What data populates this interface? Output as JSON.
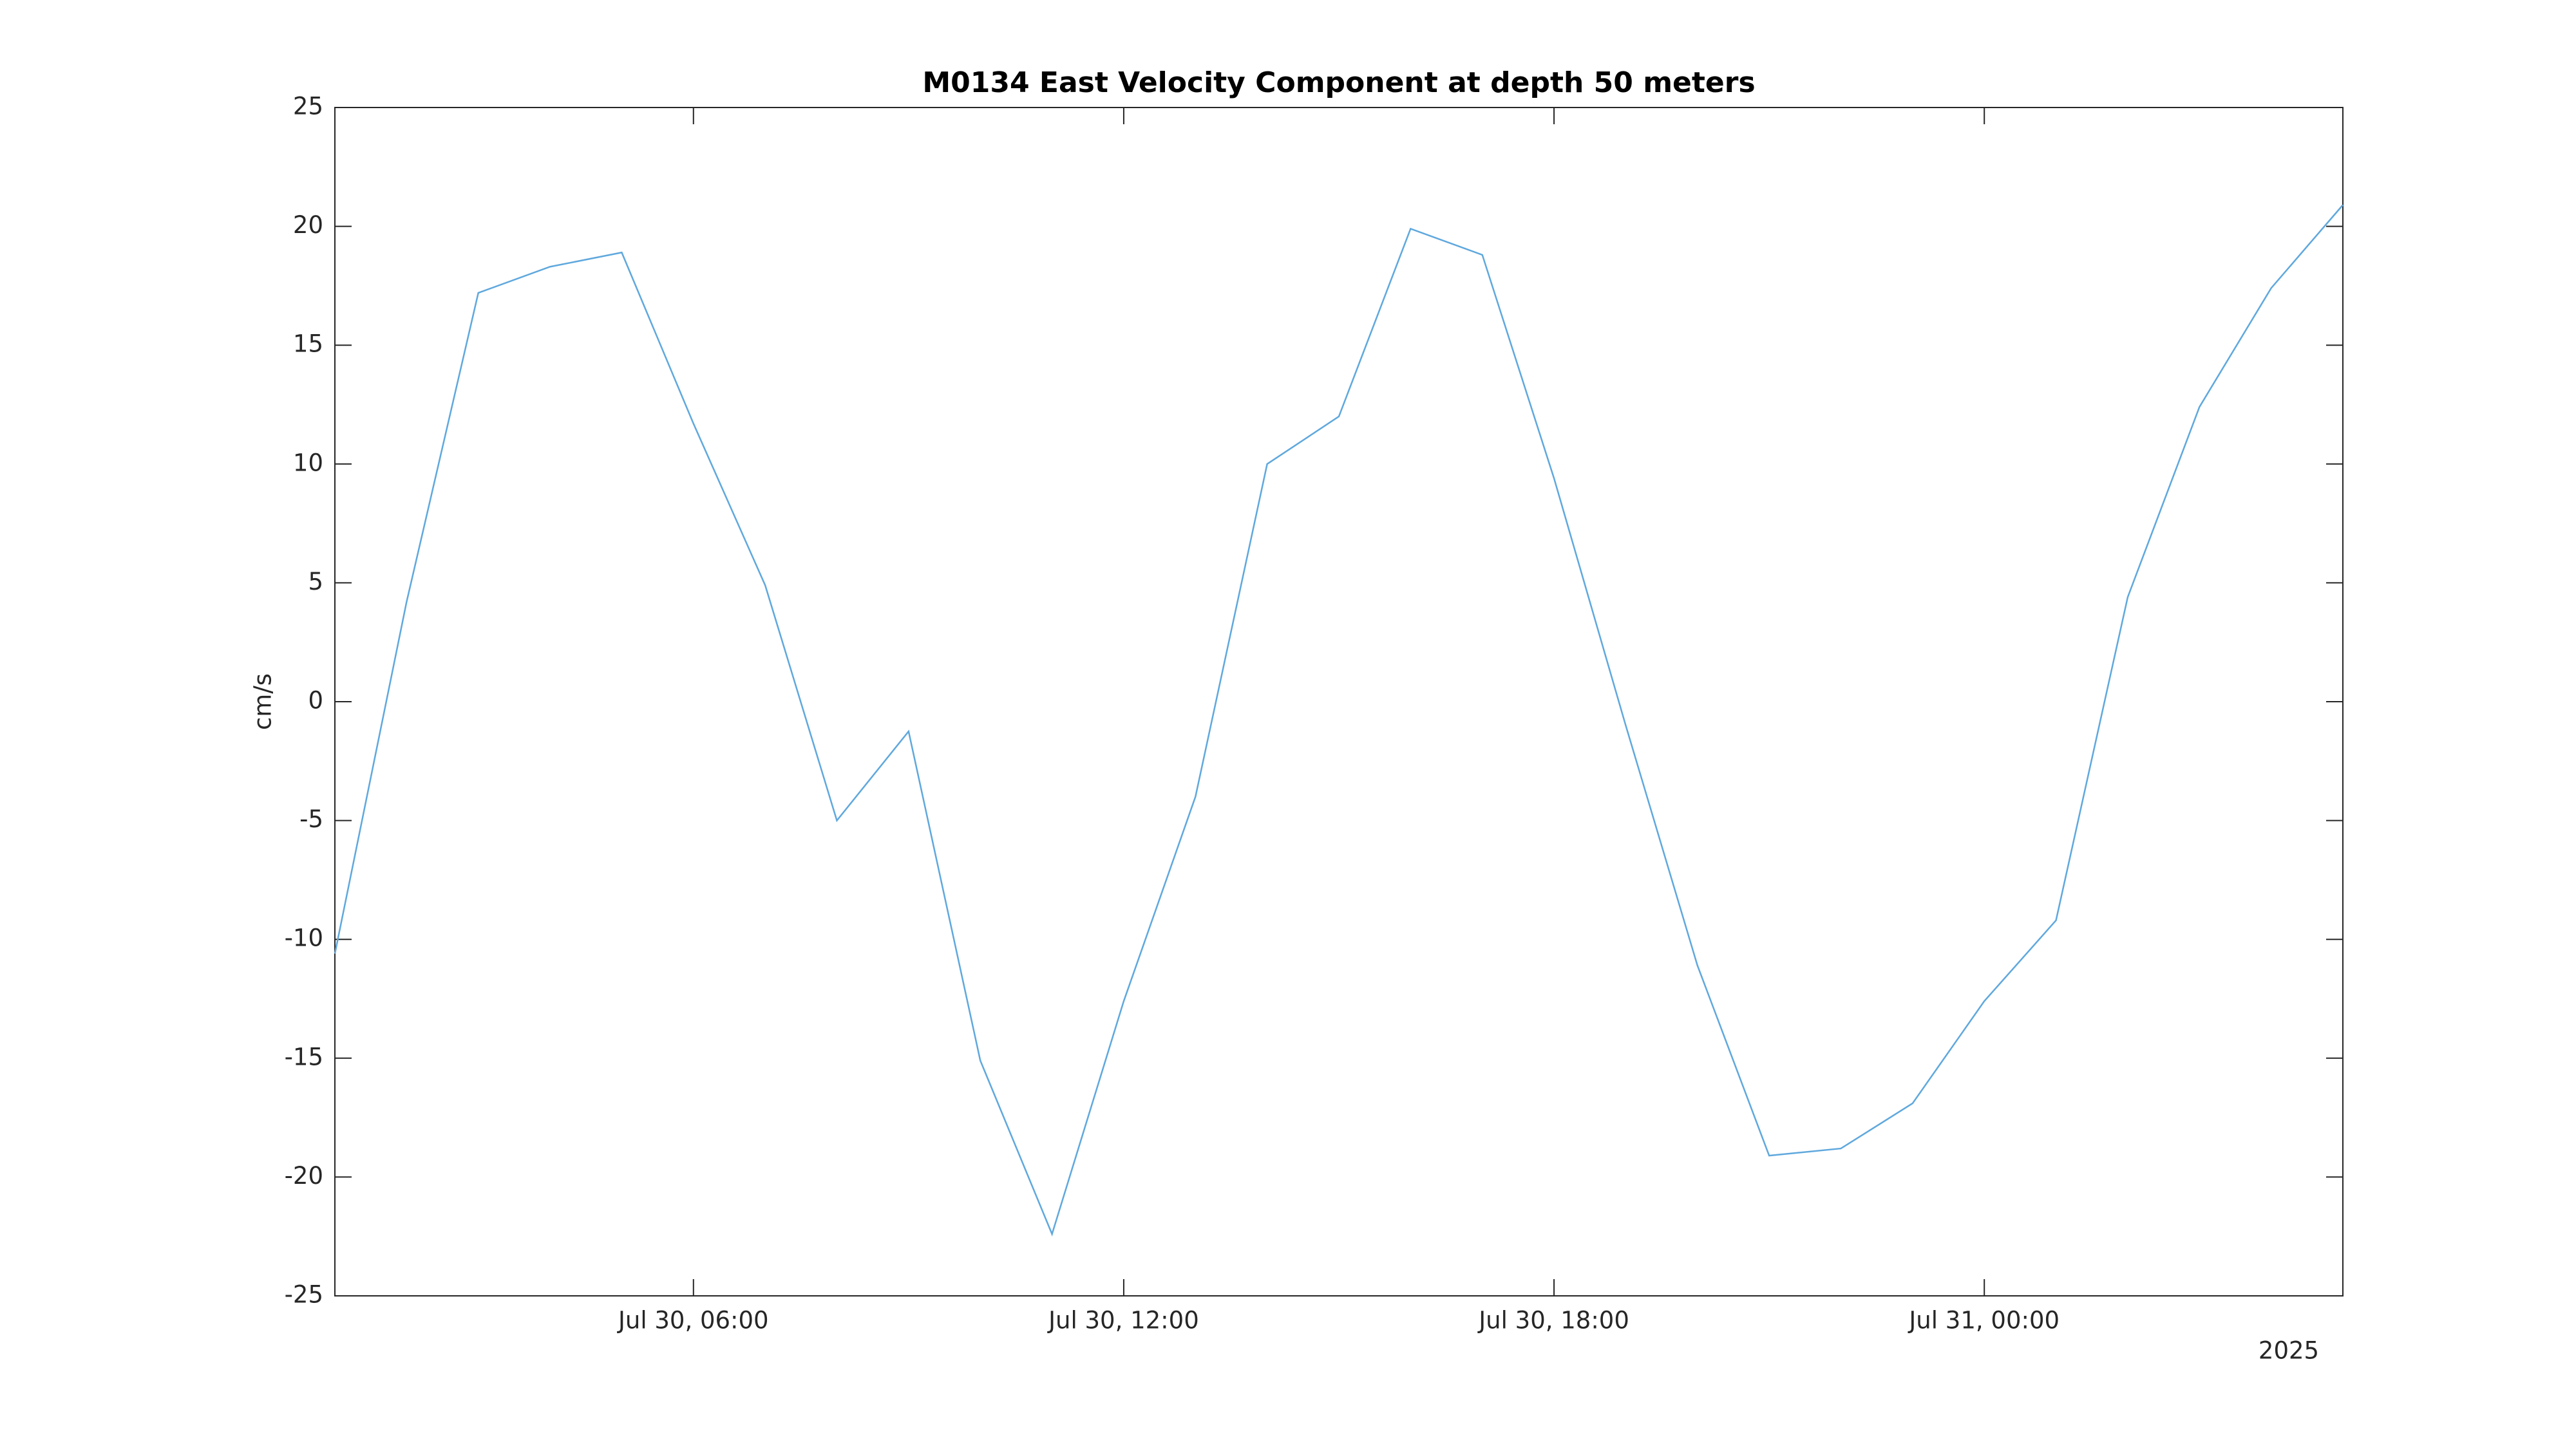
{
  "chart_data": {
    "type": "line",
    "title": "M0134 East Velocity Component at depth 50 meters",
    "ylabel": "cm/s",
    "x_secondary_label": "2025",
    "x": [
      "2025-07-30T01:00",
      "2025-07-30T02:00",
      "2025-07-30T03:00",
      "2025-07-30T04:00",
      "2025-07-30T05:00",
      "2025-07-30T06:00",
      "2025-07-30T07:00",
      "2025-07-30T08:00",
      "2025-07-30T09:00",
      "2025-07-30T10:00",
      "2025-07-30T11:00",
      "2025-07-30T12:00",
      "2025-07-30T13:00",
      "2025-07-30T14:00",
      "2025-07-30T15:00",
      "2025-07-30T16:00",
      "2025-07-30T17:00",
      "2025-07-30T18:00",
      "2025-07-30T19:00",
      "2025-07-30T20:00",
      "2025-07-30T21:00",
      "2025-07-30T22:00",
      "2025-07-30T23:00",
      "2025-07-31T00:00",
      "2025-07-31T01:00",
      "2025-07-31T02:00",
      "2025-07-31T03:00",
      "2025-07-31T04:00",
      "2025-07-31T05:00"
    ],
    "series": [
      {
        "name": "East Velocity",
        "color": "#5fa8dd",
        "values": [
          -10.6,
          4.2,
          17.2,
          18.3,
          18.9,
          11.7,
          4.9,
          -5.0,
          -1.25,
          -15.1,
          -22.4,
          -12.6,
          -4.0,
          10.0,
          12.0,
          19.9,
          18.8,
          9.4,
          -1.0,
          -11.1,
          -19.1,
          -18.8,
          -16.9,
          -12.6,
          -9.2,
          4.4,
          12.4,
          17.4,
          20.9
        ]
      }
    ],
    "xlim": [
      "2025-07-30T01:00",
      "2025-07-31T05:00"
    ],
    "xticks": [
      {
        "value": "2025-07-30T06:00",
        "label": "Jul 30, 06:00"
      },
      {
        "value": "2025-07-30T12:00",
        "label": "Jul 30, 12:00"
      },
      {
        "value": "2025-07-30T18:00",
        "label": "Jul 30, 18:00"
      },
      {
        "value": "2025-07-31T00:00",
        "label": "Jul 31, 00:00"
      }
    ],
    "ylim": [
      -25,
      25
    ],
    "yticks": [
      -25,
      -20,
      -15,
      -10,
      -5,
      0,
      5,
      10,
      15,
      20,
      25
    ],
    "grid": false
  }
}
